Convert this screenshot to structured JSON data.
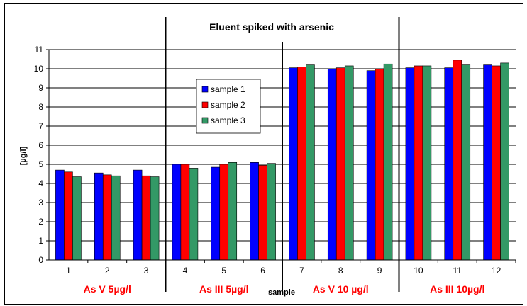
{
  "chart_data": {
    "type": "bar",
    "title": "Eluent spiked with arsenic",
    "xlabel": "sample",
    "ylabel": "[µg/l]",
    "ylim": [
      0,
      11
    ],
    "y_ticks": [
      0,
      1,
      2,
      3,
      4,
      5,
      6,
      7,
      8,
      9,
      10,
      11
    ],
    "grid": true,
    "legend_position": "center-left",
    "categories": [
      "1",
      "2",
      "3",
      "4",
      "5",
      "6",
      "7",
      "8",
      "9",
      "10",
      "11",
      "12"
    ],
    "series": [
      {
        "name": "sample 1",
        "color": "#0000ff",
        "values": [
          4.7,
          4.55,
          4.7,
          5.0,
          4.85,
          5.1,
          10.05,
          10.0,
          9.9,
          10.05,
          10.05,
          10.2
        ]
      },
      {
        "name": "sample 2",
        "color": "#ff0000",
        "values": [
          4.6,
          4.45,
          4.4,
          5.0,
          5.0,
          4.95,
          10.1,
          10.05,
          10.0,
          10.15,
          10.45,
          10.15
        ]
      },
      {
        "name": "sample 3",
        "color": "#339966",
        "values": [
          4.35,
          4.4,
          4.35,
          4.8,
          5.1,
          5.05,
          10.2,
          10.15,
          10.25,
          10.15,
          10.2,
          10.3
        ]
      }
    ],
    "groups": [
      {
        "label": "As V 5µg/l",
        "start": 0,
        "end": 2
      },
      {
        "label": "As III 5µg/l",
        "start": 3,
        "end": 5
      },
      {
        "label": "As V 10 µg/l",
        "start": 6,
        "end": 8
      },
      {
        "label": "As III 10µg/l",
        "start": 9,
        "end": 11
      }
    ]
  }
}
